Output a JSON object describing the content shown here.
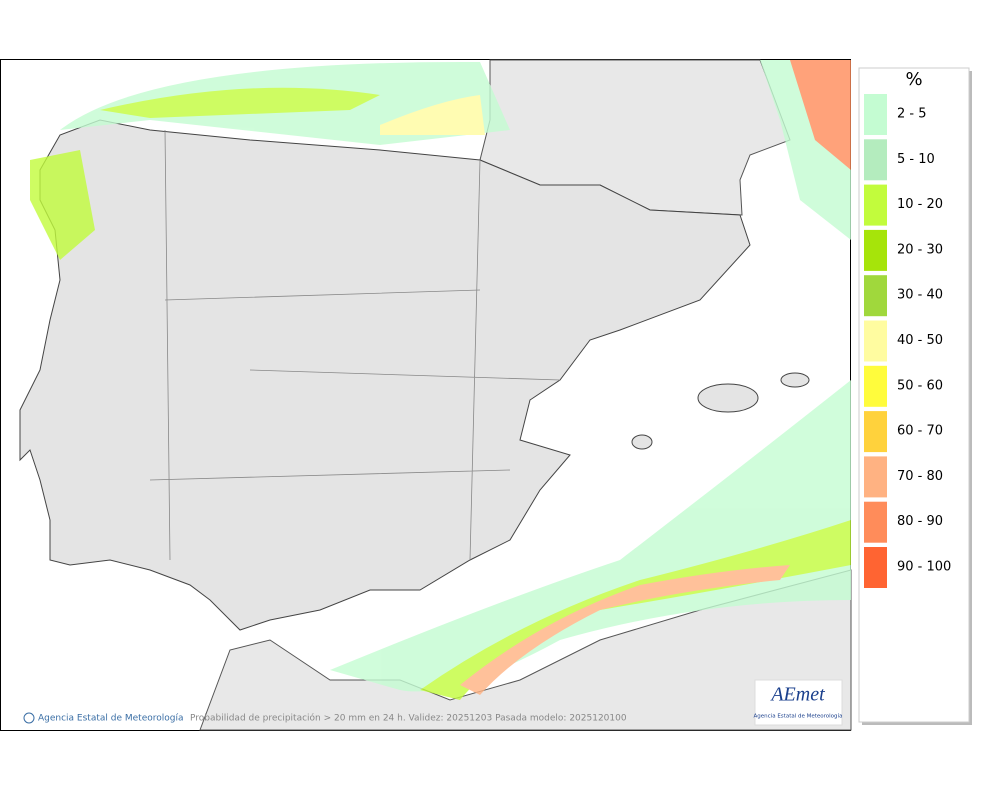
{
  "legend": {
    "title": "%",
    "items": [
      {
        "label": "2 - 5",
        "color": "#c4fcd2"
      },
      {
        "label": "5 - 10",
        "color": "#b4ecbe"
      },
      {
        "label": "10 - 20",
        "color": "#c2fc3c"
      },
      {
        "label": "20 - 30",
        "color": "#a6e40a"
      },
      {
        "label": "30 - 40",
        "color": "#a0d83c"
      },
      {
        "label": "40 - 50",
        "color": "#fffca0"
      },
      {
        "label": "50 - 60",
        "color": "#fffc3c"
      },
      {
        "label": "60 - 70",
        "color": "#ffd23c"
      },
      {
        "label": "70 - 80",
        "color": "#ffb282"
      },
      {
        "label": "80 - 90",
        "color": "#ff8c5a"
      },
      {
        "label": "90 - 100",
        "color": "#ff6432"
      }
    ]
  },
  "footer": {
    "agency": "Agencia Estatal de Meteorología",
    "description": "Probabilidad de precipitación > 20 mm en 24 h. Validez: 20251203 Pasada modelo: 2025120100"
  },
  "logo": {
    "brand": "AEmet",
    "subtitle": "Agencia Estatal de Meteorología"
  }
}
